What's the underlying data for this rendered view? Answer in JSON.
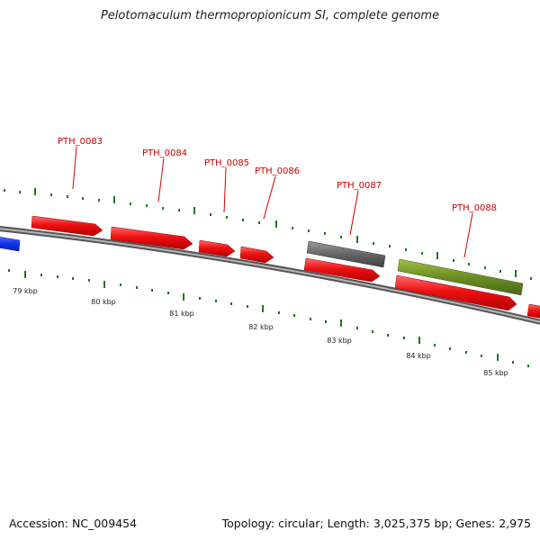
{
  "title": "Pelotomaculum thermopropionicum SI, complete genome",
  "accession": "Accession: NC_009454",
  "summary": "Topology: circular; Length: 3,025,375 bp; Genes: 2,975",
  "colors": {
    "backbone": "#8a8a8a",
    "gene_forward": "#ee1111",
    "gene_other": "#666666",
    "gene_highlight": "#6b8e23",
    "gene_left": "#1133ee",
    "tick": "#1a7a1a",
    "gene_label": "#cc0000"
  },
  "gene_labels": [
    {
      "id": "pth_0083",
      "text": "PTH_0083"
    },
    {
      "id": "pth_0084",
      "text": "PTH_0084"
    },
    {
      "id": "pth_0085",
      "text": "PTH_0085"
    },
    {
      "id": "pth_0086",
      "text": "PTH_0086"
    },
    {
      "id": "pth_0087",
      "text": "PTH_0087"
    },
    {
      "id": "pth_0088",
      "text": "PTH_0088"
    }
  ],
  "kbp_labels": [
    "79 kbp",
    "80 kbp",
    "81 kbp",
    "82 kbp",
    "83 kbp",
    "84 kbp",
    "85 kbp"
  ]
}
